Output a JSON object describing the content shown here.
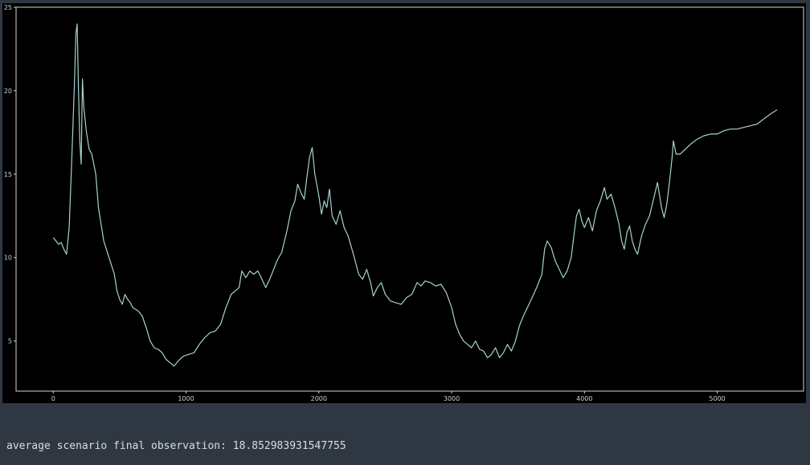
{
  "chart_data": {
    "type": "line",
    "title": "",
    "xlabel": "",
    "ylabel": "",
    "xlim": [
      -280,
      5650
    ],
    "ylim": [
      2,
      25
    ],
    "x_ticks": [
      0,
      1000,
      2000,
      3000,
      4000,
      5000
    ],
    "y_ticks": [
      5,
      10,
      15,
      20,
      25
    ],
    "grid": false,
    "legend": "none",
    "line_color": "#a7d3cf",
    "background": "#000000",
    "series": [
      {
        "points": [
          [
            0,
            11.2
          ],
          [
            20,
            11.0
          ],
          [
            40,
            10.8
          ],
          [
            60,
            10.9
          ],
          [
            80,
            10.5
          ],
          [
            100,
            10.2
          ],
          [
            120,
            11.8
          ],
          [
            140,
            16.0
          ],
          [
            160,
            20.5
          ],
          [
            170,
            23.4
          ],
          [
            180,
            24.0
          ],
          [
            190,
            20.0
          ],
          [
            200,
            17.0
          ],
          [
            210,
            15.6
          ],
          [
            220,
            20.7
          ],
          [
            230,
            19.0
          ],
          [
            250,
            17.5
          ],
          [
            270,
            16.5
          ],
          [
            290,
            16.2
          ],
          [
            320,
            15.0
          ],
          [
            340,
            13.0
          ],
          [
            360,
            12.0
          ],
          [
            380,
            11.0
          ],
          [
            400,
            10.5
          ],
          [
            420,
            10.0
          ],
          [
            440,
            9.5
          ],
          [
            460,
            9.0
          ],
          [
            480,
            8.0
          ],
          [
            500,
            7.5
          ],
          [
            520,
            7.2
          ],
          [
            540,
            7.8
          ],
          [
            560,
            7.5
          ],
          [
            580,
            7.3
          ],
          [
            600,
            7.0
          ],
          [
            640,
            6.8
          ],
          [
            670,
            6.5
          ],
          [
            700,
            5.8
          ],
          [
            730,
            5.0
          ],
          [
            760,
            4.6
          ],
          [
            790,
            4.5
          ],
          [
            820,
            4.3
          ],
          [
            850,
            3.9
          ],
          [
            880,
            3.7
          ],
          [
            910,
            3.5
          ],
          [
            940,
            3.8
          ],
          [
            980,
            4.1
          ],
          [
            1020,
            4.2
          ],
          [
            1060,
            4.3
          ],
          [
            1100,
            4.8
          ],
          [
            1140,
            5.2
          ],
          [
            1180,
            5.5
          ],
          [
            1220,
            5.6
          ],
          [
            1260,
            6.0
          ],
          [
            1300,
            7.0
          ],
          [
            1340,
            7.8
          ],
          [
            1370,
            8.0
          ],
          [
            1400,
            8.2
          ],
          [
            1420,
            9.2
          ],
          [
            1450,
            8.8
          ],
          [
            1480,
            9.2
          ],
          [
            1510,
            9.0
          ],
          [
            1540,
            9.2
          ],
          [
            1560,
            8.9
          ],
          [
            1600,
            8.2
          ],
          [
            1630,
            8.7
          ],
          [
            1660,
            9.3
          ],
          [
            1690,
            9.9
          ],
          [
            1720,
            10.3
          ],
          [
            1760,
            11.6
          ],
          [
            1790,
            12.8
          ],
          [
            1820,
            13.4
          ],
          [
            1840,
            14.4
          ],
          [
            1870,
            13.8
          ],
          [
            1890,
            13.5
          ],
          [
            1910,
            14.8
          ],
          [
            1930,
            16.0
          ],
          [
            1950,
            16.6
          ],
          [
            1970,
            15.0
          ],
          [
            2000,
            13.7
          ],
          [
            2020,
            12.6
          ],
          [
            2040,
            13.4
          ],
          [
            2060,
            13.0
          ],
          [
            2080,
            14.1
          ],
          [
            2100,
            12.5
          ],
          [
            2130,
            12.0
          ],
          [
            2160,
            12.8
          ],
          [
            2190,
            11.8
          ],
          [
            2220,
            11.3
          ],
          [
            2260,
            10.2
          ],
          [
            2300,
            9.0
          ],
          [
            2330,
            8.7
          ],
          [
            2360,
            9.3
          ],
          [
            2390,
            8.5
          ],
          [
            2410,
            7.7
          ],
          [
            2440,
            8.2
          ],
          [
            2470,
            8.5
          ],
          [
            2500,
            7.8
          ],
          [
            2540,
            7.4
          ],
          [
            2580,
            7.3
          ],
          [
            2620,
            7.2
          ],
          [
            2660,
            7.6
          ],
          [
            2700,
            7.8
          ],
          [
            2740,
            8.5
          ],
          [
            2770,
            8.3
          ],
          [
            2800,
            8.6
          ],
          [
            2840,
            8.5
          ],
          [
            2880,
            8.3
          ],
          [
            2920,
            8.4
          ],
          [
            2960,
            7.9
          ],
          [
            3000,
            7.0
          ],
          [
            3030,
            6.0
          ],
          [
            3060,
            5.4
          ],
          [
            3090,
            5.0
          ],
          [
            3120,
            4.8
          ],
          [
            3150,
            4.6
          ],
          [
            3180,
            5.0
          ],
          [
            3210,
            4.5
          ],
          [
            3240,
            4.4
          ],
          [
            3270,
            4.0
          ],
          [
            3300,
            4.2
          ],
          [
            3330,
            4.6
          ],
          [
            3360,
            4.0
          ],
          [
            3390,
            4.3
          ],
          [
            3420,
            4.8
          ],
          [
            3450,
            4.4
          ],
          [
            3480,
            5.0
          ],
          [
            3510,
            5.9
          ],
          [
            3540,
            6.5
          ],
          [
            3570,
            7.0
          ],
          [
            3600,
            7.5
          ],
          [
            3640,
            8.2
          ],
          [
            3680,
            9.0
          ],
          [
            3700,
            10.5
          ],
          [
            3720,
            11.0
          ],
          [
            3750,
            10.6
          ],
          [
            3780,
            9.8
          ],
          [
            3810,
            9.3
          ],
          [
            3840,
            8.8
          ],
          [
            3870,
            9.2
          ],
          [
            3900,
            10.0
          ],
          [
            3920,
            11.3
          ],
          [
            3940,
            12.5
          ],
          [
            3960,
            12.9
          ],
          [
            3980,
            12.2
          ],
          [
            4000,
            11.8
          ],
          [
            4030,
            12.4
          ],
          [
            4060,
            11.6
          ],
          [
            4090,
            12.8
          ],
          [
            4120,
            13.4
          ],
          [
            4150,
            14.2
          ],
          [
            4170,
            13.5
          ],
          [
            4200,
            13.8
          ],
          [
            4230,
            13.0
          ],
          [
            4260,
            12.0
          ],
          [
            4280,
            11.0
          ],
          [
            4300,
            10.5
          ],
          [
            4320,
            11.5
          ],
          [
            4340,
            11.9
          ],
          [
            4360,
            11.0
          ],
          [
            4380,
            10.5
          ],
          [
            4400,
            10.2
          ],
          [
            4430,
            11.3
          ],
          [
            4460,
            12.0
          ],
          [
            4490,
            12.5
          ],
          [
            4520,
            13.5
          ],
          [
            4550,
            14.5
          ],
          [
            4580,
            13.0
          ],
          [
            4600,
            12.4
          ],
          [
            4620,
            13.2
          ],
          [
            4640,
            14.5
          ],
          [
            4660,
            16.0
          ],
          [
            4670,
            17.0
          ],
          [
            4690,
            16.2
          ],
          [
            4720,
            16.2
          ],
          [
            4760,
            16.5
          ],
          [
            4800,
            16.8
          ],
          [
            4850,
            17.1
          ],
          [
            4900,
            17.3
          ],
          [
            4950,
            17.4
          ],
          [
            5000,
            17.4
          ],
          [
            5050,
            17.6
          ],
          [
            5100,
            17.7
          ],
          [
            5150,
            17.7
          ],
          [
            5200,
            17.8
          ],
          [
            5250,
            17.9
          ],
          [
            5300,
            18.0
          ],
          [
            5350,
            18.3
          ],
          [
            5400,
            18.6
          ],
          [
            5450,
            18.85
          ]
        ]
      }
    ]
  },
  "output": {
    "text": "average scenario final observation: 18.852983931547755"
  }
}
